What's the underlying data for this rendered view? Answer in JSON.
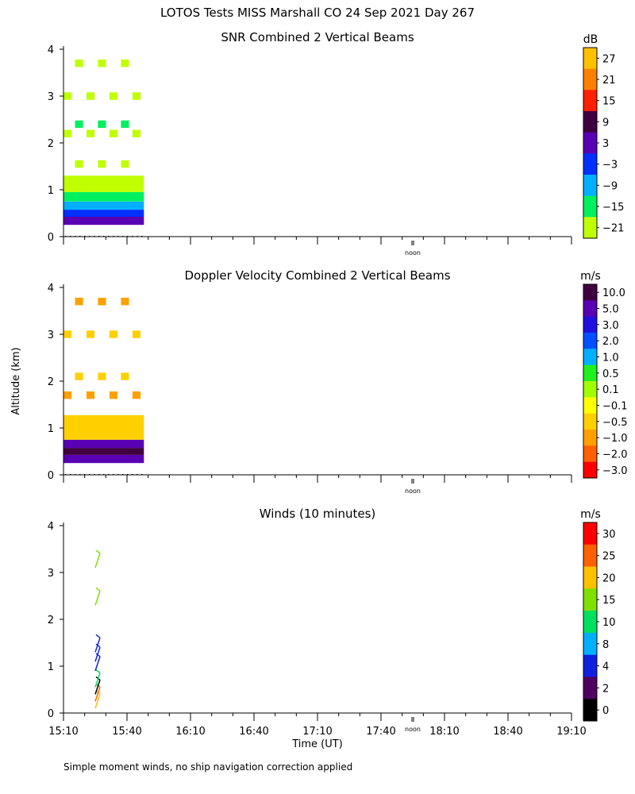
{
  "figure": {
    "title": "LOTOS Tests MISS Marshall CO  24 Sep 2021 Day 267",
    "ylabel": "Altitude (km)",
    "xlabel": "Time (UT)",
    "footnote": "Simple moment winds, no ship navigation correction applied",
    "noon_label": "noon",
    "x_ticks": [
      "15:10",
      "15:40",
      "16:10",
      "16:40",
      "17:10",
      "17:40",
      "18:10",
      "18:40",
      "19:10"
    ],
    "y_ticks": [
      "0",
      "1",
      "2",
      "3",
      "4"
    ]
  },
  "chart_data": [
    {
      "type": "heatmap",
      "title": "SNR Combined 2 Vertical Beams",
      "unit": "dB",
      "xlim": [
        "15:10",
        "19:10"
      ],
      "ylim": [
        0,
        4
      ],
      "colorbar": {
        "labels": [
          "27",
          "21",
          "15",
          "9",
          "3",
          "−3",
          "−9",
          "−15",
          "−21"
        ],
        "colors": [
          "#ffc000",
          "#ff8000",
          "#ff2000",
          "#400040",
          "#5a00b4",
          "#0030ff",
          "#00b0ff",
          "#00f060",
          "#c0ff00"
        ]
      },
      "data_extent": {
        "time": [
          "15:10",
          "15:48"
        ],
        "altitude_km": [
          0.25,
          3.95
        ]
      },
      "rows": [
        {
          "altitude_km": 0.35,
          "level": "3"
        },
        {
          "altitude_km": 0.5,
          "level": "−3"
        },
        {
          "altitude_km": 0.65,
          "level": "−9"
        },
        {
          "altitude_km": 0.85,
          "level": "−15"
        },
        {
          "altitude_km": 1.05,
          "level": "−21"
        },
        {
          "altitude_km": 1.55,
          "level": "−21"
        },
        {
          "altitude_km": 2.2,
          "level": "−21"
        },
        {
          "altitude_km": 2.4,
          "level": "−15"
        },
        {
          "altitude_km": 3.0,
          "level": "−21"
        },
        {
          "altitude_km": 3.7,
          "level": "−21"
        }
      ]
    },
    {
      "type": "heatmap",
      "title": "Doppler Velocity Combined 2 Vertical Beams",
      "unit": "m/s",
      "xlim": [
        "15:10",
        "19:10"
      ],
      "ylim": [
        0,
        4
      ],
      "colorbar": {
        "labels": [
          "10.0",
          "5.0",
          "3.0",
          "2.0",
          "1.0",
          "0.5",
          "0.1",
          "−0.1",
          "−0.5",
          "−1.0",
          "−2.0",
          "−3.0"
        ],
        "colors": [
          "#400040",
          "#5a00b4",
          "#2010e0",
          "#0050ff",
          "#00b0ff",
          "#20f020",
          "#a0ff00",
          "#ffff00",
          "#ffd000",
          "#ffa000",
          "#ff6000",
          "#ff0000"
        ]
      },
      "data_extent": {
        "time": [
          "15:10",
          "15:48"
        ],
        "altitude_km": [
          0.25,
          3.75
        ]
      },
      "rows": [
        {
          "altitude_km": 0.35,
          "level": "5.0"
        },
        {
          "altitude_km": 0.5,
          "level": "10.0"
        },
        {
          "altitude_km": 0.65,
          "level": "5.0"
        },
        {
          "altitude_km": 0.85,
          "level": "−0.5"
        },
        {
          "altitude_km": 1.7,
          "level": "−1.0"
        },
        {
          "altitude_km": 2.1,
          "level": "−0.5"
        },
        {
          "altitude_km": 3.0,
          "level": "−0.5"
        },
        {
          "altitude_km": 3.7,
          "level": "−1.0"
        }
      ]
    },
    {
      "type": "scatter",
      "title": "Winds (10 minutes)",
      "unit": "m/s",
      "xlim": [
        "15:10",
        "19:10"
      ],
      "ylim": [
        0,
        4
      ],
      "colorbar": {
        "labels": [
          "30",
          "25",
          "20",
          "15",
          "10",
          "8",
          "4",
          "2",
          "0"
        ],
        "colors": [
          "#ff0000",
          "#ff6000",
          "#ffc000",
          "#80e000",
          "#00e060",
          "#00b0ff",
          "#1020e0",
          "#500060",
          "#000000"
        ]
      },
      "barbs": [
        {
          "time": "15:25",
          "altitude_km": 0.1,
          "speed_ms": 20
        },
        {
          "time": "15:25",
          "altitude_km": 0.25,
          "speed_ms": 25
        },
        {
          "time": "15:25",
          "altitude_km": 0.4,
          "speed_ms": 0
        },
        {
          "time": "15:25",
          "altitude_km": 0.55,
          "speed_ms": 10
        },
        {
          "time": "15:25",
          "altitude_km": 0.9,
          "speed_ms": 4
        },
        {
          "time": "15:25",
          "altitude_km": 1.1,
          "speed_ms": 4
        },
        {
          "time": "15:25",
          "altitude_km": 1.3,
          "speed_ms": 4
        },
        {
          "time": "15:25",
          "altitude_km": 2.3,
          "speed_ms": 15
        },
        {
          "time": "15:25",
          "altitude_km": 3.1,
          "speed_ms": 15
        }
      ]
    }
  ]
}
